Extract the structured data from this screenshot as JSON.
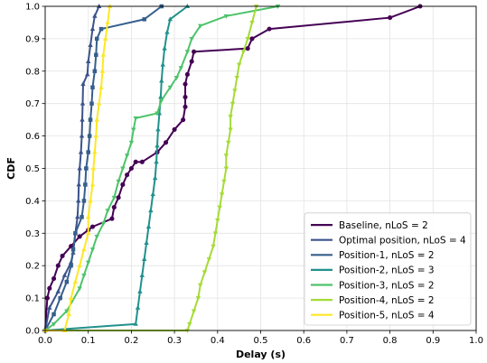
{
  "chart_data": {
    "type": "line",
    "xlabel": "Delay (s)",
    "ylabel": "CDF",
    "xlim": [
      0.0,
      1.0
    ],
    "ylim": [
      0.0,
      1.0
    ],
    "x_ticks": [
      "0.0",
      "0.1",
      "0.2",
      "0.3",
      "0.4",
      "0.5",
      "0.6",
      "0.7",
      "0.8",
      "0.9",
      "1.0"
    ],
    "y_ticks": [
      "0.0",
      "0.1",
      "0.2",
      "0.3",
      "0.4",
      "0.5",
      "0.6",
      "0.7",
      "0.8",
      "0.9",
      "1.0"
    ],
    "grid": true,
    "legend_position": "lower-right",
    "series": [
      {
        "name": "Baseline, nLoS = 2",
        "color": "#440154",
        "marker": "circle",
        "points": [
          [
            0.0,
            0.0
          ],
          [
            0.005,
            0.1
          ],
          [
            0.01,
            0.13
          ],
          [
            0.02,
            0.16
          ],
          [
            0.03,
            0.2
          ],
          [
            0.04,
            0.23
          ],
          [
            0.06,
            0.26
          ],
          [
            0.08,
            0.29
          ],
          [
            0.1,
            0.31
          ],
          [
            0.11,
            0.32
          ],
          [
            0.155,
            0.345
          ],
          [
            0.16,
            0.38
          ],
          [
            0.17,
            0.41
          ],
          [
            0.18,
            0.45
          ],
          [
            0.19,
            0.48
          ],
          [
            0.2,
            0.5
          ],
          [
            0.21,
            0.52
          ],
          [
            0.225,
            0.52
          ],
          [
            0.26,
            0.55
          ],
          [
            0.28,
            0.58
          ],
          [
            0.3,
            0.62
          ],
          [
            0.32,
            0.65
          ],
          [
            0.325,
            0.69
          ],
          [
            0.325,
            0.72
          ],
          [
            0.325,
            0.76
          ],
          [
            0.33,
            0.79
          ],
          [
            0.34,
            0.83
          ],
          [
            0.345,
            0.86
          ],
          [
            0.47,
            0.87
          ],
          [
            0.48,
            0.9
          ],
          [
            0.52,
            0.93
          ],
          [
            0.8,
            0.965
          ],
          [
            0.87,
            1.0
          ]
        ]
      },
      {
        "name": "Optimal position, nLoS = 4",
        "color": "#3b528b",
        "marker": "triangle-up",
        "points": [
          [
            0.0,
            0.0
          ],
          [
            0.01,
            0.07
          ],
          [
            0.03,
            0.12
          ],
          [
            0.045,
            0.17
          ],
          [
            0.06,
            0.21
          ],
          [
            0.065,
            0.24
          ],
          [
            0.07,
            0.3
          ],
          [
            0.075,
            0.35
          ],
          [
            0.077,
            0.4
          ],
          [
            0.078,
            0.45
          ],
          [
            0.08,
            0.5
          ],
          [
            0.083,
            0.55
          ],
          [
            0.085,
            0.6
          ],
          [
            0.086,
            0.65
          ],
          [
            0.087,
            0.7
          ],
          [
            0.088,
            0.76
          ],
          [
            0.098,
            0.79
          ],
          [
            0.1,
            0.83
          ],
          [
            0.105,
            0.88
          ],
          [
            0.11,
            0.93
          ],
          [
            0.115,
            0.97
          ],
          [
            0.125,
            1.0
          ]
        ]
      },
      {
        "name": "Position-1, nLoS = 2",
        "color": "#355f8d",
        "marker": "square",
        "points": [
          [
            0.0,
            0.0
          ],
          [
            0.02,
            0.05
          ],
          [
            0.035,
            0.1
          ],
          [
            0.05,
            0.15
          ],
          [
            0.06,
            0.2
          ],
          [
            0.065,
            0.25
          ],
          [
            0.07,
            0.3
          ],
          [
            0.085,
            0.35
          ],
          [
            0.09,
            0.4
          ],
          [
            0.093,
            0.45
          ],
          [
            0.095,
            0.5
          ],
          [
            0.1,
            0.55
          ],
          [
            0.103,
            0.6
          ],
          [
            0.105,
            0.65
          ],
          [
            0.108,
            0.7
          ],
          [
            0.11,
            0.75
          ],
          [
            0.115,
            0.8
          ],
          [
            0.118,
            0.85
          ],
          [
            0.12,
            0.9
          ],
          [
            0.13,
            0.93
          ],
          [
            0.23,
            0.96
          ],
          [
            0.27,
            1.0
          ]
        ]
      },
      {
        "name": "Position-2, nLoS = 3",
        "color": "#21918c",
        "marker": "triangle-up",
        "points": [
          [
            0.0,
            0.0
          ],
          [
            0.21,
            0.02
          ],
          [
            0.215,
            0.07
          ],
          [
            0.22,
            0.12
          ],
          [
            0.225,
            0.17
          ],
          [
            0.23,
            0.22
          ],
          [
            0.235,
            0.27
          ],
          [
            0.24,
            0.32
          ],
          [
            0.245,
            0.37
          ],
          [
            0.25,
            0.42
          ],
          [
            0.255,
            0.47
          ],
          [
            0.258,
            0.52
          ],
          [
            0.26,
            0.57
          ],
          [
            0.262,
            0.62
          ],
          [
            0.265,
            0.67
          ],
          [
            0.268,
            0.72
          ],
          [
            0.27,
            0.77
          ],
          [
            0.273,
            0.82
          ],
          [
            0.277,
            0.87
          ],
          [
            0.283,
            0.92
          ],
          [
            0.29,
            0.96
          ],
          [
            0.33,
            1.0
          ]
        ]
      },
      {
        "name": "Position-3, nLoS = 2",
        "color": "#4ec36b",
        "marker": "triangle-down",
        "points": [
          [
            0.0,
            0.0
          ],
          [
            0.02,
            0.02
          ],
          [
            0.05,
            0.06
          ],
          [
            0.08,
            0.13
          ],
          [
            0.09,
            0.17
          ],
          [
            0.1,
            0.21
          ],
          [
            0.11,
            0.25
          ],
          [
            0.12,
            0.29
          ],
          [
            0.135,
            0.33
          ],
          [
            0.145,
            0.37
          ],
          [
            0.16,
            0.41
          ],
          [
            0.17,
            0.46
          ],
          [
            0.18,
            0.5
          ],
          [
            0.19,
            0.54
          ],
          [
            0.2,
            0.58
          ],
          [
            0.205,
            0.62
          ],
          [
            0.21,
            0.655
          ],
          [
            0.26,
            0.67
          ],
          [
            0.27,
            0.71
          ],
          [
            0.29,
            0.75
          ],
          [
            0.305,
            0.78
          ],
          [
            0.315,
            0.81
          ],
          [
            0.33,
            0.86
          ],
          [
            0.34,
            0.9
          ],
          [
            0.36,
            0.94
          ],
          [
            0.42,
            0.97
          ],
          [
            0.54,
            1.0
          ]
        ]
      },
      {
        "name": "Position-4, nLoS = 2",
        "color": "#a5db36",
        "marker": "triangle-down",
        "points": [
          [
            0.0,
            0.0
          ],
          [
            0.33,
            0.0
          ],
          [
            0.335,
            0.02
          ],
          [
            0.345,
            0.06
          ],
          [
            0.355,
            0.1
          ],
          [
            0.36,
            0.14
          ],
          [
            0.37,
            0.18
          ],
          [
            0.38,
            0.22
          ],
          [
            0.39,
            0.26
          ],
          [
            0.395,
            0.3
          ],
          [
            0.4,
            0.34
          ],
          [
            0.405,
            0.38
          ],
          [
            0.41,
            0.42
          ],
          [
            0.415,
            0.46
          ],
          [
            0.42,
            0.5
          ],
          [
            0.42,
            0.54
          ],
          [
            0.425,
            0.58
          ],
          [
            0.43,
            0.62
          ],
          [
            0.43,
            0.66
          ],
          [
            0.435,
            0.7
          ],
          [
            0.44,
            0.74
          ],
          [
            0.445,
            0.78
          ],
          [
            0.45,
            0.82
          ],
          [
            0.46,
            0.86
          ],
          [
            0.47,
            0.9
          ],
          [
            0.48,
            0.95
          ],
          [
            0.49,
            1.0
          ]
        ]
      },
      {
        "name": "Position-5, nLoS = 4",
        "color": "#fde725",
        "marker": "triangle-up",
        "points": [
          [
            0.0,
            0.0
          ],
          [
            0.045,
            0.0
          ],
          [
            0.055,
            0.05
          ],
          [
            0.06,
            0.1
          ],
          [
            0.07,
            0.15
          ],
          [
            0.08,
            0.2
          ],
          [
            0.09,
            0.25
          ],
          [
            0.1,
            0.3
          ],
          [
            0.1,
            0.35
          ],
          [
            0.105,
            0.4
          ],
          [
            0.11,
            0.45
          ],
          [
            0.112,
            0.5
          ],
          [
            0.115,
            0.55
          ],
          [
            0.118,
            0.6
          ],
          [
            0.12,
            0.65
          ],
          [
            0.125,
            0.7
          ],
          [
            0.13,
            0.75
          ],
          [
            0.133,
            0.8
          ],
          [
            0.135,
            0.85
          ],
          [
            0.14,
            0.9
          ],
          [
            0.145,
            0.95
          ],
          [
            0.15,
            1.0
          ]
        ]
      }
    ]
  }
}
